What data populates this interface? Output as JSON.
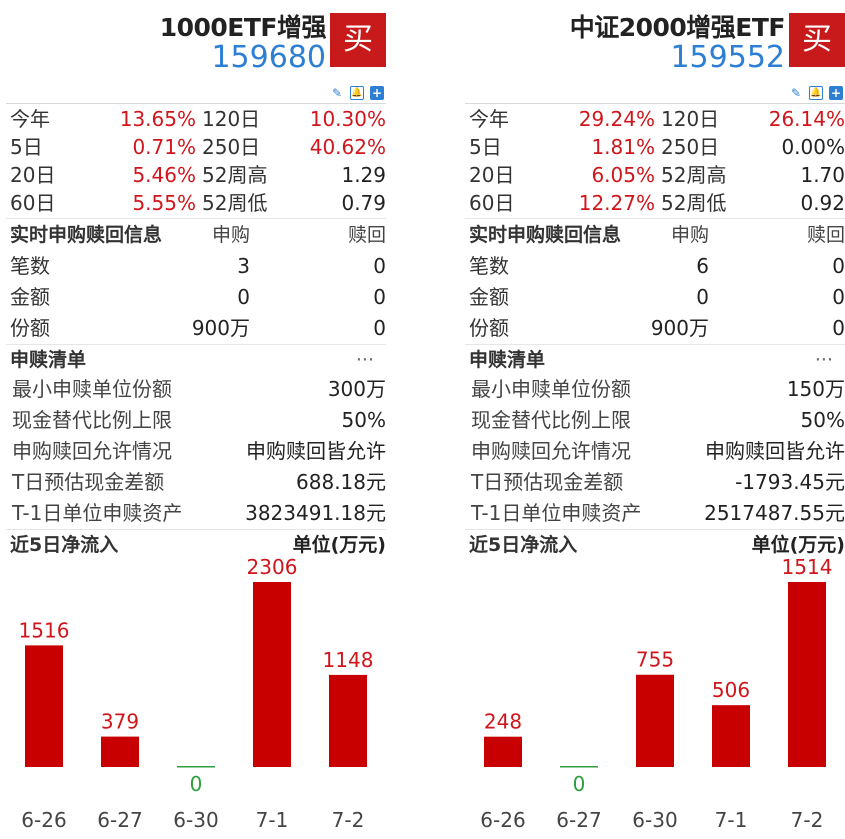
{
  "panels": [
    {
      "name": "1000ETF增强",
      "code": "159680",
      "buy_label": "买",
      "returns": [
        {
          "l1": "今年",
          "v1": "13.65%",
          "l2": "120日",
          "v2": "10.30%",
          "v2_color": "red"
        },
        {
          "l1": "5日",
          "v1": "0.71%",
          "l2": "250日",
          "v2": "40.62%",
          "v2_color": "red"
        },
        {
          "l1": "20日",
          "v1": "5.46%",
          "l2": "52周高",
          "v2": "1.29",
          "v2_color": "dark"
        },
        {
          "l1": "60日",
          "v1": "5.55%",
          "l2": "52周低",
          "v2": "0.79",
          "v2_color": "dark"
        }
      ],
      "realtime": {
        "title": "实时申购赎回信息",
        "col_subscribe": "申购",
        "col_redeem": "赎回",
        "rows": [
          {
            "label": "笔数",
            "subscribe": "3",
            "redeem": "0"
          },
          {
            "label": "金额",
            "subscribe": "0",
            "redeem": "0"
          },
          {
            "label": "份额",
            "subscribe": "900万",
            "redeem": "0"
          }
        ]
      },
      "sg_list": {
        "title": "申赎清单",
        "more": "···",
        "rows": [
          {
            "label": "最小申赎单位份额",
            "value": "300万"
          },
          {
            "label": "现金替代比例上限",
            "value": "50%"
          },
          {
            "label": "申购赎回允许情况",
            "value": "申购赎回皆允许"
          },
          {
            "label": "T日预估现金差额",
            "value": "688.18元"
          },
          {
            "label": "T-1日单位申赎资产",
            "value": "3823491.18元"
          }
        ]
      },
      "flow_title": "近5日净流入",
      "flow_unit": "单位(万元)",
      "chart_data": {
        "type": "bar",
        "categories": [
          "6-26",
          "6-27",
          "6-30",
          "7-1",
          "7-2"
        ],
        "values": [
          1516,
          379,
          0,
          2306,
          1148
        ],
        "title": "近5日净流入",
        "ylabel": "单位(万元)"
      }
    },
    {
      "name": "中证2000增强ETF",
      "code": "159552",
      "buy_label": "买",
      "returns": [
        {
          "l1": "今年",
          "v1": "29.24%",
          "l2": "120日",
          "v2": "26.14%",
          "v2_color": "red"
        },
        {
          "l1": "5日",
          "v1": "1.81%",
          "l2": "250日",
          "v2": "0.00%",
          "v2_color": "dark"
        },
        {
          "l1": "20日",
          "v1": "6.05%",
          "l2": "52周高",
          "v2": "1.70",
          "v2_color": "dark"
        },
        {
          "l1": "60日",
          "v1": "12.27%",
          "l2": "52周低",
          "v2": "0.92",
          "v2_color": "dark"
        }
      ],
      "realtime": {
        "title": "实时申购赎回信息",
        "col_subscribe": "申购",
        "col_redeem": "赎回",
        "rows": [
          {
            "label": "笔数",
            "subscribe": "6",
            "redeem": "0"
          },
          {
            "label": "金额",
            "subscribe": "0",
            "redeem": "0"
          },
          {
            "label": "份额",
            "subscribe": "900万",
            "redeem": "0"
          }
        ]
      },
      "sg_list": {
        "title": "申赎清单",
        "more": "···",
        "rows": [
          {
            "label": "最小申赎单位份额",
            "value": "150万"
          },
          {
            "label": "现金替代比例上限",
            "value": "50%"
          },
          {
            "label": "申购赎回允许情况",
            "value": "申购赎回皆允许"
          },
          {
            "label": "T日预估现金差额",
            "value": "-1793.45元"
          },
          {
            "label": "T-1日单位申赎资产",
            "value": "2517487.55元"
          }
        ]
      },
      "flow_title": "近5日净流入",
      "flow_unit": "单位(万元)",
      "chart_data": {
        "type": "bar",
        "categories": [
          "6-26",
          "6-27",
          "6-30",
          "7-1",
          "7-2"
        ],
        "values": [
          248,
          0,
          755,
          506,
          1514
        ],
        "title": "近5日净流入",
        "ylabel": "单位(万元)"
      }
    }
  ],
  "colors": {
    "up": "#d0161c",
    "zero": "#2e9e3e",
    "code": "#2d7fd4",
    "buy": "#c81a1a"
  }
}
